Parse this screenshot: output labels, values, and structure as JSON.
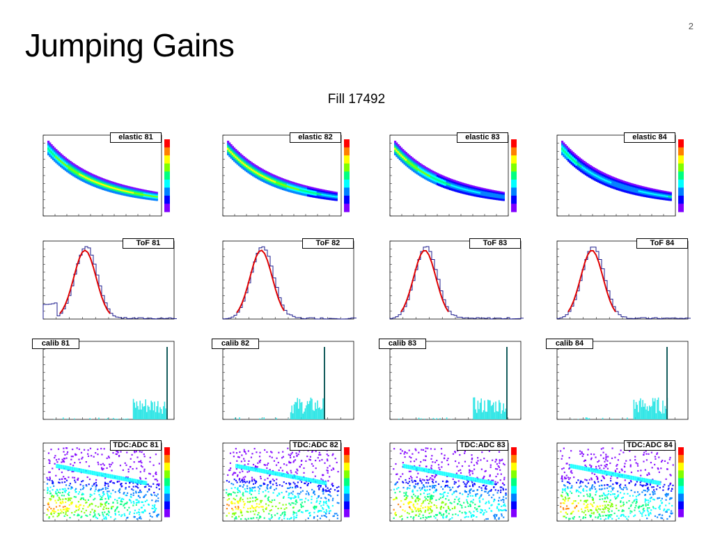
{
  "slide": {
    "title": "Jumping Gains",
    "page_number": "2",
    "subtitle": "Fill 17492"
  },
  "rows": {
    "elastic": [
      "elastic 81",
      "elastic 82",
      "elastic 83",
      "elastic 84"
    ],
    "tof": [
      "ToF 81",
      "ToF 82",
      "ToF 83",
      "ToF 84"
    ],
    "calib": [
      "calib 81",
      "calib 82",
      "calib 83",
      "calib 84"
    ],
    "tdcadc": [
      "TDC:ADC 81",
      "TDC:ADC 82",
      "TDC:ADC 83",
      "TDC:ADC 84"
    ]
  },
  "colors": {
    "hist_line": "#1a1a8c",
    "fit": "#e00000",
    "calib_fill": "#33e6e6",
    "calib_peak": "#000000"
  },
  "colormap": [
    "#ff0000",
    "#ff8000",
    "#ffff00",
    "#80ff00",
    "#00ff80",
    "#00ffff",
    "#0080ff",
    "#0000ff",
    "#8000ff"
  ]
}
